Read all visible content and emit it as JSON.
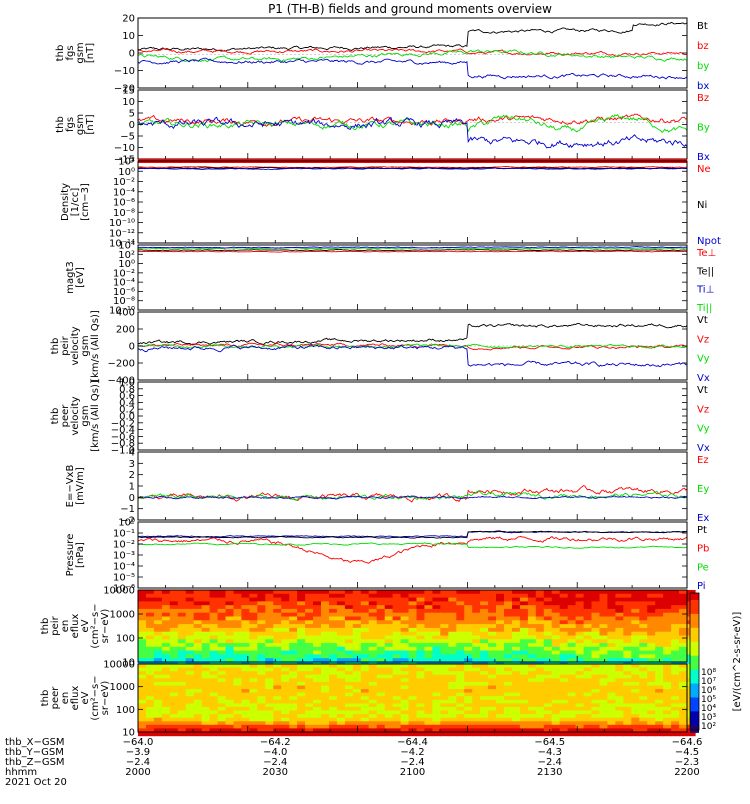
{
  "title": "P1 (TH-B) fields and ground moments overview",
  "colors": {
    "black": "#000000",
    "red": "#ff0000",
    "green": "#00dd00",
    "blue": "#0000cc"
  },
  "chart_data": [
    {
      "type": "line",
      "ylabel": [
        "thb",
        "fgs",
        "gsm",
        "[nT]"
      ],
      "yticks": [
        "20",
        "10",
        "0",
        "−10",
        "−20"
      ],
      "ylim": [
        -20,
        22
      ],
      "series": [
        {
          "name": "Bt"
        },
        {
          "name": "bz"
        },
        {
          "name": "by"
        },
        {
          "name": "bx"
        }
      ]
    },
    {
      "type": "line",
      "ylabel": [
        "thb",
        "fgs",
        "gsm",
        "[nT]"
      ],
      "yticks": [
        "15",
        "10",
        "5",
        "0",
        "−5",
        "−10",
        "−15"
      ],
      "ylim": [
        -17,
        15
      ],
      "series": [
        {
          "name": "Bz"
        },
        {
          "name": "By"
        },
        {
          "name": "Bx"
        }
      ]
    },
    {
      "type": "line",
      "ylabel": [
        "Density",
        "[1/cc]",
        "[cm−3]"
      ],
      "yticks": [
        "10²",
        "10⁰",
        "10⁻²",
        "10⁻⁴",
        "10⁻⁶",
        "10⁻⁸",
        "10⁻¹⁰",
        "10⁻¹²",
        "10⁻¹⁴"
      ],
      "ylim": [
        -14,
        2
      ],
      "series": [
        {
          "name": "Ne"
        },
        {
          "name": "Ni"
        },
        {
          "name": "Npot"
        }
      ]
    },
    {
      "type": "line",
      "ylabel": [
        "magt3",
        "[eV]"
      ],
      "yticks": [
        "10⁴",
        "10²",
        "10⁰",
        "10⁻²",
        "10⁻⁴",
        "10⁻⁶",
        "10⁻⁸",
        "10⁻¹⁰"
      ],
      "ylim": [
        -10,
        4
      ],
      "series": [
        {
          "name": "Te⊥"
        },
        {
          "name": "Te||"
        },
        {
          "name": "Ti⊥"
        },
        {
          "name": "Ti||"
        }
      ]
    },
    {
      "type": "line",
      "ylabel": [
        "thb",
        "peir",
        "velocity",
        "gsm",
        "[km/s (All Qs)]"
      ],
      "yticks": [
        "400",
        "200",
        "0",
        "−200",
        "−400"
      ],
      "ylim": [
        -400,
        400
      ],
      "series": [
        {
          "name": "Vt"
        },
        {
          "name": "Vz"
        },
        {
          "name": "Vy"
        },
        {
          "name": "Vx"
        }
      ]
    },
    {
      "type": "line",
      "ylabel": [
        "thb",
        "peer",
        "velocity",
        "gsm",
        "[km/s (All Qs)]"
      ],
      "yticks": [
        "1.0",
        "0.8",
        "0.6",
        "0.4",
        "0.2",
        "0.0",
        "−0.2",
        "−0.4",
        "−0.6",
        "−0.8",
        "−1.0"
      ],
      "ylim": [
        -1,
        1
      ],
      "series": [
        {
          "name": "Vt"
        },
        {
          "name": "Vz"
        },
        {
          "name": "Vy"
        },
        {
          "name": "Vx"
        }
      ]
    },
    {
      "type": "line",
      "ylabel": [
        "E=−VxB",
        "[mV/m]"
      ],
      "yticks": [
        "4",
        "3",
        "2",
        "1",
        "0",
        "−1",
        "−2"
      ],
      "ylim": [
        -2,
        4
      ],
      "series": [
        {
          "name": "Ez"
        },
        {
          "name": "Ey"
        },
        {
          "name": "Ex"
        }
      ]
    },
    {
      "type": "line",
      "ylabel": [
        "Pressure",
        "[nPa]"
      ],
      "yticks": [
        "10⁰",
        "10⁻¹",
        "10⁻²",
        "10⁻³",
        "10⁻⁴",
        "10⁻⁵",
        "10⁻⁶"
      ],
      "ylim": [
        -6,
        0
      ],
      "series": [
        {
          "name": "Pt"
        },
        {
          "name": "Pb"
        },
        {
          "name": "Pe"
        },
        {
          "name": "Pi"
        }
      ]
    },
    {
      "type": "heatmap",
      "ylabel": [
        "thb",
        "peir",
        "en",
        "eflux",
        "eV",
        "(cm²−s−",
        "sr−eV)"
      ],
      "yticks": [
        "10000",
        "1000",
        "100",
        "10"
      ]
    },
    {
      "type": "heatmap",
      "ylabel": [
        "thb",
        "peer",
        "en",
        "eflux",
        "eV",
        "(cm²−s−",
        "sr−eV)"
      ],
      "yticks": [
        "10000",
        "1000",
        "100",
        "10"
      ]
    }
  ],
  "colorbar": {
    "ticks": [
      "10⁸",
      "10⁷",
      "10⁶",
      "10⁵",
      "10⁴",
      "10³",
      "10²"
    ],
    "label": "[eV/(cm^2-s-sr-eV)]",
    "label_overlap": "[eV/(cm^2-s-sr-eV) (All Qs)]"
  },
  "xaxis": {
    "rows": [
      {
        "label": "thb_X−GSM",
        "values": [
          "−64.0",
          "−64.2",
          "−64.4",
          "−64.5",
          "−64.6"
        ]
      },
      {
        "label": "thb_Y−GSM",
        "values": [
          "−3.9",
          "−4.0",
          "−4.2",
          "−4.3",
          "−4.5"
        ]
      },
      {
        "label": "thb_Z−GSM",
        "values": [
          "−2.4",
          "−2.4",
          "−2.4",
          "−2.4",
          "−2.3"
        ]
      },
      {
        "label": "hhmm",
        "values": [
          "2000",
          "2030",
          "2100",
          "2130",
          "2200"
        ]
      }
    ],
    "date": "2021 Oct 20"
  }
}
